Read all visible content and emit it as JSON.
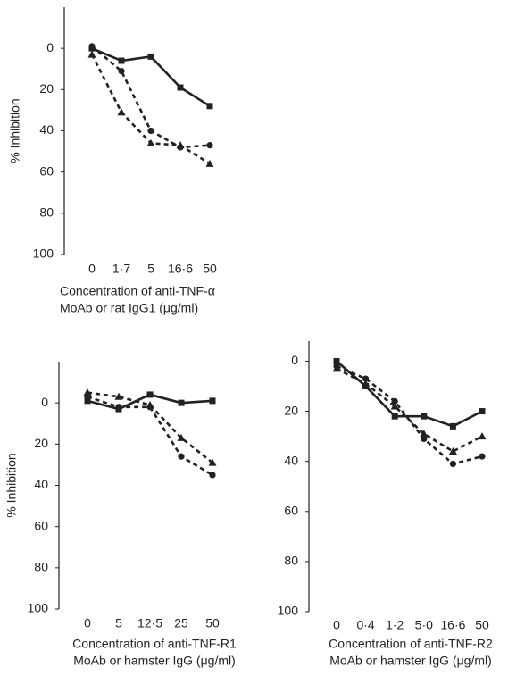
{
  "chart_data": [
    {
      "type": "line",
      "ylabel": "% Inhibition",
      "xlabel": [
        "Concentration of anti-TNF-α",
        "MoAb or rat IgG1 (μg/ml)"
      ],
      "categories": [
        "0",
        "1·7",
        "5",
        "16·6",
        "50"
      ],
      "ylim": [
        -20,
        100
      ],
      "y_inverted": true,
      "yticks": [
        0,
        20,
        40,
        60,
        80,
        100
      ],
      "series": [
        {
          "marker": "square",
          "line": "solid",
          "color": "#222222",
          "values": [
            0,
            6,
            4,
            19,
            28
          ]
        },
        {
          "marker": "circle",
          "line": "dashed",
          "color": "#222222",
          "values": [
            -1,
            11,
            40,
            48,
            47
          ]
        },
        {
          "marker": "triangle",
          "line": "dashed",
          "color": "#222222",
          "values": [
            3,
            31,
            46,
            47,
            56
          ]
        }
      ]
    },
    {
      "type": "line",
      "ylabel": "% Inhibition",
      "xlabel": [
        "Concentration of anti-TNF-R1",
        "MoAb or hamster IgG (μg/ml)"
      ],
      "categories": [
        "0",
        "5",
        "12·5",
        "25",
        "50"
      ],
      "ylim": [
        -20,
        100
      ],
      "y_inverted": true,
      "yticks": [
        0,
        20,
        40,
        60,
        80,
        100
      ],
      "series": [
        {
          "marker": "square",
          "line": "solid",
          "color": "#222222",
          "values": [
            -1,
            3,
            -4,
            0,
            -1
          ]
        },
        {
          "marker": "circle",
          "line": "dashed",
          "color": "#222222",
          "values": [
            -3,
            2,
            2,
            26,
            35
          ]
        },
        {
          "marker": "triangle",
          "line": "dashed",
          "color": "#222222",
          "values": [
            -5,
            -3,
            1,
            17,
            29
          ]
        }
      ]
    },
    {
      "type": "line",
      "xlabel": [
        "Concentration of anti-TNF-R2",
        "MoAb or hamster IgG (μg/ml)"
      ],
      "categories": [
        "0",
        "0·4",
        "1·2",
        "5·0",
        "16·6",
        "50"
      ],
      "ylim": [
        -8,
        100
      ],
      "y_inverted": true,
      "yticks": [
        0,
        20,
        40,
        60,
        80,
        100
      ],
      "series": [
        {
          "marker": "square",
          "line": "solid",
          "color": "#222222",
          "values": [
            0,
            10,
            22,
            22,
            26,
            20
          ]
        },
        {
          "marker": "circle",
          "line": "dashed",
          "color": "#222222",
          "values": [
            2,
            7,
            16,
            31,
            41,
            38
          ]
        },
        {
          "marker": "triangle",
          "line": "dashed",
          "color": "#222222",
          "values": [
            3,
            9,
            18,
            29,
            36,
            30
          ]
        }
      ]
    }
  ]
}
